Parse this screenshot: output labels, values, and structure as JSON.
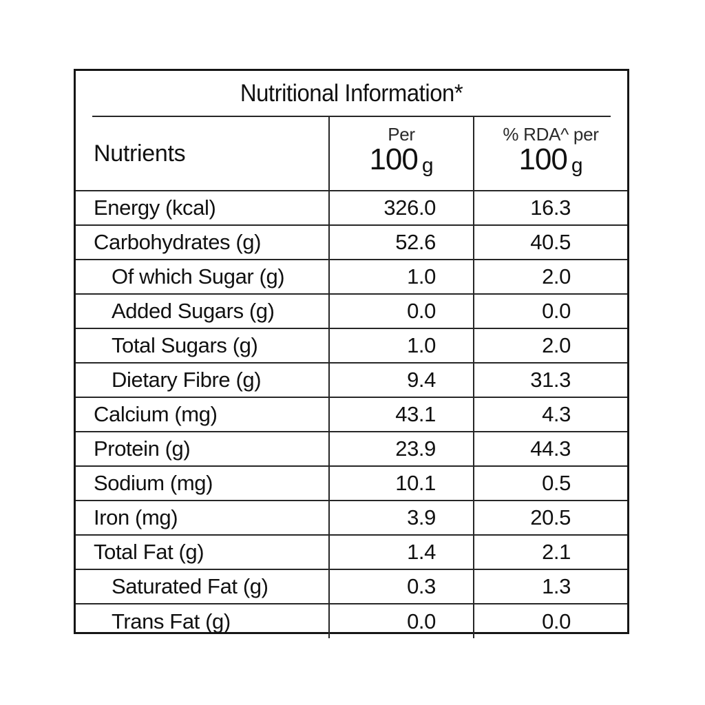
{
  "label": {
    "title": "Nutritional Information*",
    "header": {
      "nutrients": "Nutrients",
      "per_top": "Per",
      "per_amount": "100",
      "per_unit": "g",
      "rda_top": "% RDA^ per",
      "rda_amount": "100",
      "rda_unit": "g"
    },
    "rows": [
      {
        "name": "Energy (kcal)",
        "per100": "326.0",
        "rda": "16.3",
        "indent": false
      },
      {
        "name": "Carbohydrates (g)",
        "per100": "52.6",
        "rda": "40.5",
        "indent": false
      },
      {
        "name": "Of which Sugar (g)",
        "per100": "1.0",
        "rda": "2.0",
        "indent": true
      },
      {
        "name": "Added Sugars (g)",
        "per100": "0.0",
        "rda": "0.0",
        "indent": true
      },
      {
        "name": "Total Sugars (g)",
        "per100": "1.0",
        "rda": "2.0",
        "indent": true
      },
      {
        "name": "Dietary Fibre (g)",
        "per100": "9.4",
        "rda": "31.3",
        "indent": true
      },
      {
        "name": "Calcium (mg)",
        "per100": "43.1",
        "rda": "4.3",
        "indent": false
      },
      {
        "name": "Protein (g)",
        "per100": "23.9",
        "rda": "44.3",
        "indent": false
      },
      {
        "name": "Sodium (mg)",
        "per100": "10.1",
        "rda": "0.5",
        "indent": false
      },
      {
        "name": "Iron (mg)",
        "per100": "3.9",
        "rda": "20.5",
        "indent": false
      },
      {
        "name": "Total Fat (g)",
        "per100": "1.4",
        "rda": "2.1",
        "indent": false
      },
      {
        "name": "Saturated Fat (g)",
        "per100": "0.3",
        "rda": "1.3",
        "indent": true
      },
      {
        "name": "Trans Fat (g)",
        "per100": "0.0",
        "rda": "0.0",
        "indent": true
      }
    ]
  }
}
